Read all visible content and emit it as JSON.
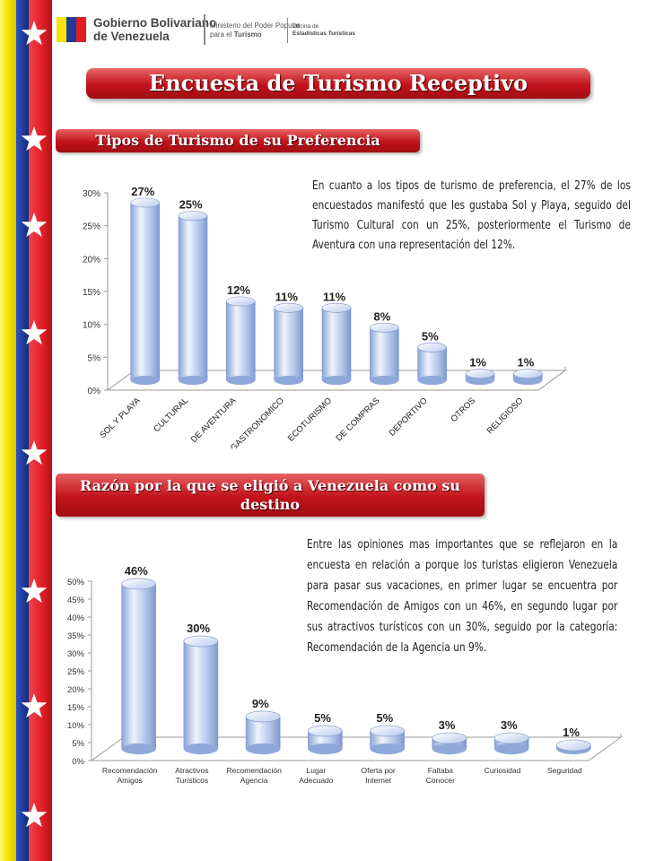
{
  "header": {
    "gov_line1": "Gobierno Bolivariano",
    "gov_line2": "de Venezuela",
    "ministry_line1": "Ministerio del Poder Popular",
    "ministry_line2_pre": "para el ",
    "ministry_line2_bold": "Turismo",
    "office_line1": "Oficina de",
    "office_line2": "Estadísticas Turísticas"
  },
  "title": "Encuesta de Turismo Receptivo",
  "section1": {
    "heading": "Tipos de Turismo de su Preferencia",
    "paragraph": "En cuanto a los tipos de turismo de preferencia, el 27% de los encuestados manifestó que les gustaba Sol y Playa, seguido del Turismo Cultural con un 25%, posteriormente el Turismo de Aventura con una representación del 12%."
  },
  "section2": {
    "heading_line1": "Razón por la que se eligió a Venezuela como su",
    "heading_line2": "destino",
    "paragraph": "Entre las opiniones mas importantes que se reflejaron en la encuesta en relación a porque los turistas eligieron Venezuela para pasar sus vacaciones, en primer lugar se encuentra por Recomendación de Amigos con un 46%, en segundo lugar por sus atractivos turísticos con un 30%, seguido por la categoría: Recomendación de la Agencia un 9%."
  },
  "colors": {
    "flag_yellow": "#f5e400",
    "flag_blue": "#1d3a9c",
    "flag_red": "#e01e26",
    "banner_red": "#c1121b",
    "bar_blue": "#a9bfe6"
  },
  "chart_data": [
    {
      "type": "bar",
      "title": "",
      "xlabel": "",
      "ylabel": "",
      "ylim": [
        0,
        30
      ],
      "yticks": [
        "0%",
        "5%",
        "10%",
        "15%",
        "20%",
        "25%",
        "30%"
      ],
      "categories": [
        "SOL Y PLAYA",
        "CULTURAL",
        "DE AVENTURA",
        "GASTRONOMICO",
        "ECOTURISMO",
        "DE COMPRAS",
        "DEPORTIVO",
        "OTROS",
        "RELIGIOSO"
      ],
      "values": [
        27,
        25,
        12,
        11,
        11,
        8,
        5,
        1,
        1
      ],
      "labels": [
        "27%",
        "25%",
        "12%",
        "11%",
        "11%",
        "8%",
        "5%",
        "1%",
        "1%"
      ],
      "grid": false,
      "style": "3d-cylinder"
    },
    {
      "type": "bar",
      "title": "",
      "xlabel": "",
      "ylabel": "",
      "ylim": [
        0,
        50
      ],
      "yticks": [
        "0%",
        "5%",
        "10%",
        "15%",
        "20%",
        "25%",
        "30%",
        "35%",
        "40%",
        "45%",
        "50%"
      ],
      "categories": [
        [
          "Recomendación",
          "Amigos"
        ],
        [
          "Atractivos",
          "Turísticos"
        ],
        [
          "Recomendación",
          "Agencia"
        ],
        [
          "Lugar",
          "Adecuado"
        ],
        [
          "Oferta por",
          "Internet"
        ],
        [
          "Faltaba",
          "Conocer"
        ],
        [
          "Curiosidad"
        ],
        [
          "Seguridad"
        ]
      ],
      "values": [
        46,
        30,
        9,
        5,
        5,
        3,
        3,
        1
      ],
      "labels": [
        "46%",
        "30%",
        "9%",
        "5%",
        "5%",
        "3%",
        "3%",
        "1%"
      ],
      "grid": false,
      "style": "3d-cylinder"
    }
  ]
}
